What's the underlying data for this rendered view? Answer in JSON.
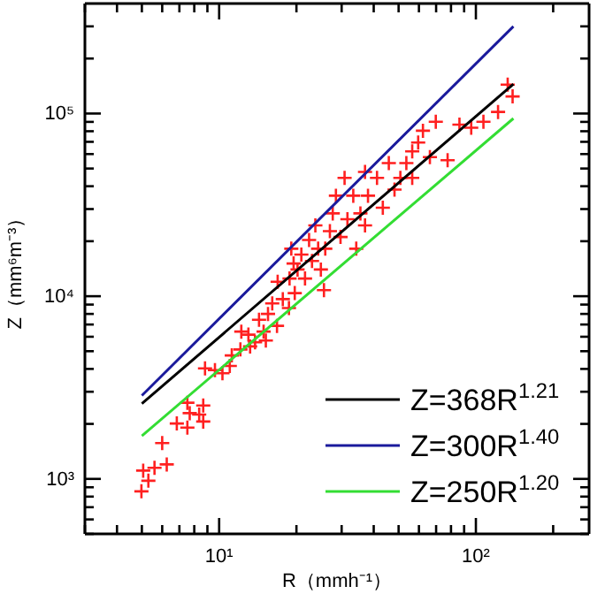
{
  "chart_data": {
    "type": "scatter",
    "xlabel": "R（mmh⁻¹）",
    "ylabel": "Z（mm⁶m⁻³）",
    "log": "xy",
    "grid": false,
    "legend": "bottom right",
    "xlim": [
      3,
      276
    ],
    "ylim": [
      500,
      400000
    ],
    "xticks": [
      {
        "value": 3,
        "label": null
      },
      {
        "value": 4,
        "label": null
      },
      {
        "value": 5,
        "label": null
      },
      {
        "value": 6,
        "label": null
      },
      {
        "value": 7,
        "label": null
      },
      {
        "value": 8,
        "label": null
      },
      {
        "value": 9,
        "label": null
      },
      {
        "value": 10,
        "label": "10¹"
      },
      {
        "value": 20,
        "label": null
      },
      {
        "value": 30,
        "label": null
      },
      {
        "value": 40,
        "label": null
      },
      {
        "value": 50,
        "label": null
      },
      {
        "value": 60,
        "label": null
      },
      {
        "value": 70,
        "label": null
      },
      {
        "value": 80,
        "label": null
      },
      {
        "value": 90,
        "label": null
      },
      {
        "value": 100,
        "label": "10²"
      },
      {
        "value": 200,
        "label": null
      }
    ],
    "yticks": [
      {
        "value": 500,
        "label": null
      },
      {
        "value": 600,
        "label": null
      },
      {
        "value": 700,
        "label": null
      },
      {
        "value": 800,
        "label": null
      },
      {
        "value": 900,
        "label": null
      },
      {
        "value": 1000,
        "label": "10³"
      },
      {
        "value": 2000,
        "label": null
      },
      {
        "value": 3000,
        "label": null
      },
      {
        "value": 4000,
        "label": null
      },
      {
        "value": 5000,
        "label": null
      },
      {
        "value": 6000,
        "label": null
      },
      {
        "value": 7000,
        "label": null
      },
      {
        "value": 8000,
        "label": null
      },
      {
        "value": 9000,
        "label": null
      },
      {
        "value": 10000,
        "label": "10⁴"
      },
      {
        "value": 20000,
        "label": null
      },
      {
        "value": 30000,
        "label": null
      },
      {
        "value": 40000,
        "label": null
      },
      {
        "value": 50000,
        "label": null
      },
      {
        "value": 60000,
        "label": null
      },
      {
        "value": 70000,
        "label": null
      },
      {
        "value": 80000,
        "label": null
      },
      {
        "value": 90000,
        "label": null
      },
      {
        "value": 100000,
        "label": "10⁵"
      },
      {
        "value": 200000,
        "label": null
      },
      {
        "value": 300000,
        "label": null
      }
    ],
    "series": [
      {
        "color": "#ff2020",
        "marker": "cross",
        "x": [
          4.98,
          5.3,
          5.06,
          5.6,
          6.0,
          6.25,
          6.84,
          7.52,
          7.52,
          7.68,
          8.36,
          8.67,
          8.67,
          8.81,
          9.63,
          10.3,
          11.0,
          11.2,
          12.1,
          12.2,
          13.0,
          13.2,
          13.8,
          14.3,
          14.9,
          15.2,
          15.5,
          16.1,
          16.8,
          16.9,
          17.7,
          18.7,
          18.8,
          19.1,
          19.7,
          20.2,
          20.9,
          21.6,
          22.4,
          23.0,
          23.7,
          24.9,
          25.6,
          25.9,
          27.0,
          27.7,
          28.5,
          29.7,
          30.8,
          31.6,
          33.3,
          34.2,
          35.5,
          37.0,
          38.0,
          41.2,
          43.4,
          45.8,
          48.2,
          50.8,
          53.6,
          56.5,
          59.6,
          62.2,
          66.2,
          69.8,
          77.6,
          86.3,
          95.9,
          107,
          122,
          133,
          139,
          19.5,
          24.3,
          37.0,
          56.5
        ],
        "values": [
          855,
          977,
          1110,
          1150,
          1570,
          1200,
          2010,
          2610,
          1910,
          2290,
          2250,
          2520,
          2060,
          4030,
          3940,
          3790,
          4150,
          4740,
          5110,
          6400,
          6160,
          5310,
          5590,
          7430,
          6400,
          5720,
          8000,
          9140,
          6880,
          12000,
          9640,
          8610,
          12500,
          18200,
          10400,
          14000,
          16900,
          12500,
          20300,
          15600,
          24400,
          14000,
          10800,
          18200,
          22700,
          28400,
          35500,
          21100,
          44400,
          26400,
          35500,
          18200,
          28400,
          47900,
          35500,
          44400,
          30500,
          53500,
          38300,
          44400,
          53500,
          62100,
          69400,
          80500,
          57700,
          90200,
          55500,
          86900,
          83600,
          90200,
          102000,
          144000,
          124000,
          15100,
          18200,
          24400,
          44400
        ]
      },
      {
        "type": "line",
        "name": "Z=368R$^{1.21}$",
        "color": "#000000",
        "x": [
          5,
          140
        ],
        "values": [
          2580,
          145000
        ]
      },
      {
        "type": "line",
        "name": "Z=300R$^{1.40}$",
        "color": "#1a1a9c",
        "x": [
          5,
          140
        ],
        "values": [
          2860,
          300000
        ]
      },
      {
        "type": "line",
        "name": "Z=250R$^{1.20}$",
        "color": "#33dd33",
        "x": [
          5,
          140
        ],
        "values": [
          1720,
          94000
        ]
      }
    ]
  }
}
